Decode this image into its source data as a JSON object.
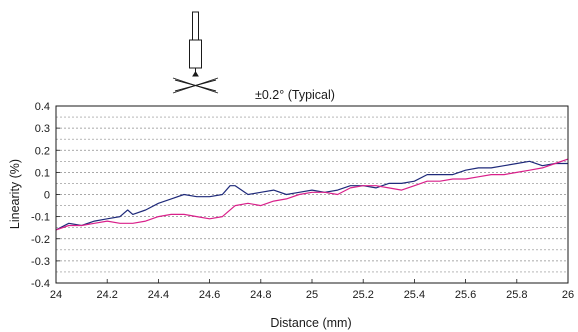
{
  "chart_data": {
    "type": "line",
    "title": "",
    "annotation": "±0.2° (Typical)",
    "xlabel": "Distance (mm)",
    "ylabel": "Linearity (%)",
    "xlim": [
      24,
      26
    ],
    "ylim": [
      -0.4,
      0.4
    ],
    "x_ticks": [
      "24",
      "24.2",
      "24.4",
      "24.6",
      "24.8",
      "25",
      "25.2",
      "25.4",
      "25.6",
      "25.8",
      "26"
    ],
    "y_ticks": [
      "0.4",
      "0.3",
      "0.2",
      "0.1",
      "0",
      "-0.1",
      "-0.2",
      "-0.3",
      "-0.4"
    ],
    "grid": "horizontal-dashed",
    "series": [
      {
        "color": "#1f2a7a",
        "x": [
          24.0,
          24.05,
          24.1,
          24.15,
          24.2,
          24.25,
          24.28,
          24.3,
          24.35,
          24.4,
          24.45,
          24.5,
          24.55,
          24.6,
          24.65,
          24.68,
          24.7,
          24.75,
          24.8,
          24.85,
          24.9,
          24.95,
          25.0,
          25.05,
          25.1,
          25.15,
          25.2,
          25.25,
          25.3,
          25.35,
          25.4,
          25.45,
          25.5,
          25.55,
          25.6,
          25.65,
          25.7,
          25.75,
          25.8,
          25.85,
          25.9,
          25.95,
          26.0
        ],
        "values": [
          -0.16,
          -0.13,
          -0.14,
          -0.12,
          -0.11,
          -0.1,
          -0.07,
          -0.09,
          -0.07,
          -0.04,
          -0.02,
          0.0,
          -0.01,
          -0.01,
          0.0,
          0.04,
          0.04,
          0.0,
          0.01,
          0.02,
          0.0,
          0.01,
          0.02,
          0.01,
          0.02,
          0.04,
          0.04,
          0.03,
          0.05,
          0.05,
          0.06,
          0.09,
          0.09,
          0.09,
          0.11,
          0.12,
          0.12,
          0.13,
          0.14,
          0.15,
          0.13,
          0.14,
          0.14
        ]
      },
      {
        "color": "#d9208a",
        "x": [
          24.0,
          24.05,
          24.1,
          24.15,
          24.2,
          24.25,
          24.3,
          24.35,
          24.4,
          24.45,
          24.5,
          24.55,
          24.6,
          24.65,
          24.7,
          24.75,
          24.8,
          24.85,
          24.9,
          24.95,
          25.0,
          25.05,
          25.1,
          25.15,
          25.2,
          25.25,
          25.3,
          25.35,
          25.4,
          25.45,
          25.5,
          25.55,
          25.6,
          25.65,
          25.7,
          25.75,
          25.8,
          25.85,
          25.9,
          25.95,
          26.0
        ],
        "values": [
          -0.16,
          -0.14,
          -0.14,
          -0.13,
          -0.12,
          -0.13,
          -0.13,
          -0.12,
          -0.1,
          -0.09,
          -0.09,
          -0.1,
          -0.11,
          -0.1,
          -0.05,
          -0.04,
          -0.05,
          -0.03,
          -0.02,
          0.0,
          0.01,
          0.01,
          0.0,
          0.03,
          0.04,
          0.04,
          0.03,
          0.02,
          0.04,
          0.06,
          0.06,
          0.07,
          0.07,
          0.08,
          0.09,
          0.09,
          0.1,
          0.11,
          0.12,
          0.14,
          0.16
        ]
      }
    ]
  }
}
